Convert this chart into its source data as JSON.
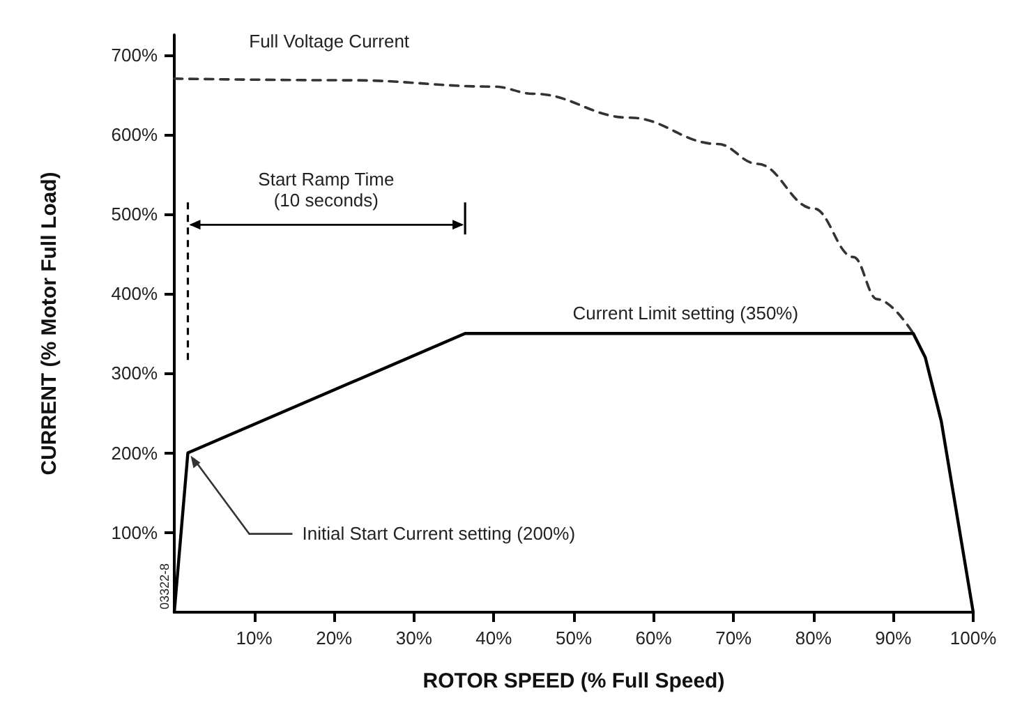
{
  "chart_data": {
    "type": "line",
    "xlabel": "ROTOR SPEED (% Full Speed)",
    "ylabel": "CURRENT (% Motor Full Load)",
    "xlim": [
      0,
      100
    ],
    "ylim": [
      0,
      725
    ],
    "xticks": [
      {
        "value": 10,
        "label": "10%"
      },
      {
        "value": 20,
        "label": "20%"
      },
      {
        "value": 30,
        "label": "30%"
      },
      {
        "value": 40,
        "label": "40%"
      },
      {
        "value": 50,
        "label": "50%"
      },
      {
        "value": 60,
        "label": "60%"
      },
      {
        "value": 70,
        "label": "70%"
      },
      {
        "value": 80,
        "label": "80%"
      },
      {
        "value": 90,
        "label": "90%"
      },
      {
        "value": 100,
        "label": "100%"
      }
    ],
    "yticks": [
      {
        "value": 100,
        "label": "100%"
      },
      {
        "value": 200,
        "label": "200%"
      },
      {
        "value": 300,
        "label": "300%"
      },
      {
        "value": 400,
        "label": "400%"
      },
      {
        "value": 500,
        "label": "500%"
      },
      {
        "value": 600,
        "label": "600%"
      },
      {
        "value": 700,
        "label": "700%"
      }
    ],
    "series": [
      {
        "color": "#333333",
        "line_style": "dashed",
        "x": [
          0,
          22,
          40,
          45,
          57,
          68,
          73,
          80,
          85,
          88,
          92.5
        ],
        "values": [
          670,
          668,
          660,
          651,
          621,
          588,
          563,
          507,
          446,
          393,
          350
        ]
      },
      {
        "color": "#000000",
        "line_style": "solid",
        "x": [
          0,
          1.7,
          36.4,
          92.5,
          94,
          96,
          97.5,
          99,
          100
        ],
        "values": [
          0,
          200,
          350,
          350,
          320,
          240,
          150,
          60,
          0
        ]
      }
    ],
    "annotations": [
      {
        "text": "Full Voltage Current",
        "x": 5,
        "y": 670
      },
      "Start Ramp Time\n(10 seconds)",
      {
        "text": "Current Limit setting (350%)",
        "x": 64,
        "y": 350
      },
      {
        "text": "Initial Start Current setting (200%)",
        "x": 1.7,
        "y": 200
      },
      "03322-8"
    ],
    "grid": false,
    "marker": "none"
  }
}
